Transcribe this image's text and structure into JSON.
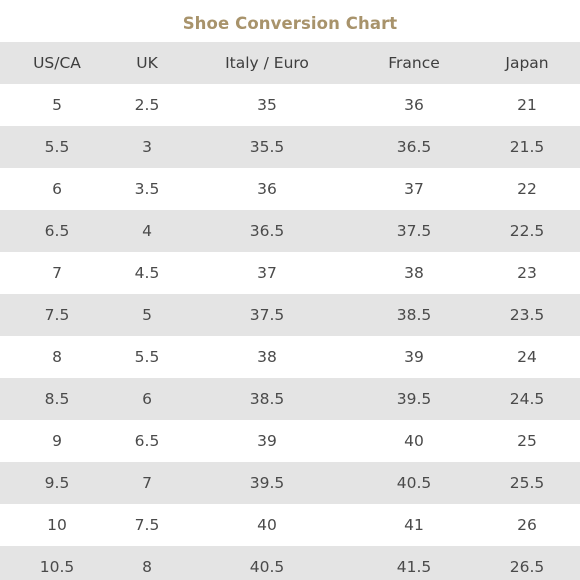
{
  "title": "Shoe Conversion Chart",
  "columns": [
    "US/CA",
    "UK",
    "Italy / Euro",
    "France",
    "Japan"
  ],
  "rows": [
    [
      "5",
      "2.5",
      "35",
      "36",
      "21"
    ],
    [
      "5.5",
      "3",
      "35.5",
      "36.5",
      "21.5"
    ],
    [
      "6",
      "3.5",
      "36",
      "37",
      "22"
    ],
    [
      "6.5",
      "4",
      "36.5",
      "37.5",
      "22.5"
    ],
    [
      "7",
      "4.5",
      "37",
      "38",
      "23"
    ],
    [
      "7.5",
      "5",
      "37.5",
      "38.5",
      "23.5"
    ],
    [
      "8",
      "5.5",
      "38",
      "39",
      "24"
    ],
    [
      "8.5",
      "6",
      "38.5",
      "39.5",
      "24.5"
    ],
    [
      "9",
      "6.5",
      "39",
      "40",
      "25"
    ],
    [
      "9.5",
      "7",
      "39.5",
      "40.5",
      "25.5"
    ],
    [
      "10",
      "7.5",
      "40",
      "41",
      "26"
    ],
    [
      "10.5",
      "8",
      "40.5",
      "41.5",
      "26.5"
    ]
  ],
  "colors": {
    "title": "#a8936b",
    "shaded_row": "#e4e4e4",
    "text": "#4a4a4a"
  }
}
